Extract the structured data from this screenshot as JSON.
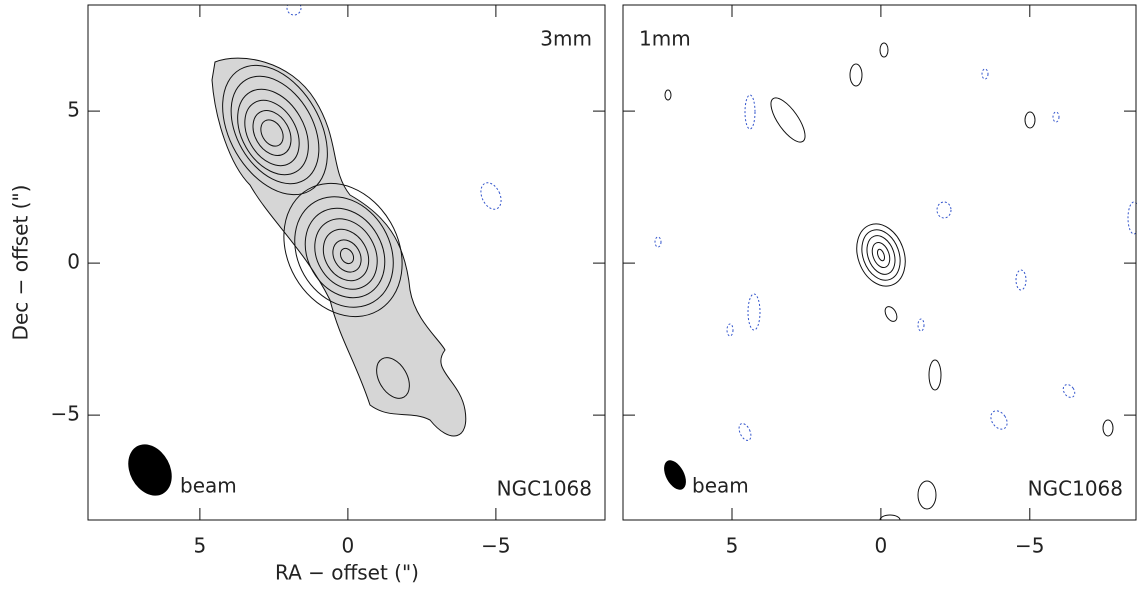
{
  "chart_data": [
    {
      "type": "contour",
      "label": "3mm",
      "source": "NGC1068",
      "beam_label": "beam",
      "x_label": "RA − offset (\")",
      "y_label": "Dec − offset (\")",
      "xlim": [
        8.78,
        -8.72
      ],
      "ylim": [
        -8.45,
        8.49
      ],
      "xticks": [
        5,
        0,
        {
          "value": -5,
          "label": "−5"
        }
      ],
      "yticks": [
        {
          "value": -5,
          "label": "−5"
        },
        0,
        5
      ]
    },
    {
      "type": "contour",
      "label": "1mm",
      "source": "NGC1068",
      "beam_label": "beam",
      "xlim": [
        8.66,
        -8.6
      ],
      "ylim": [
        -8.45,
        8.49
      ],
      "xticks": [
        5,
        0,
        {
          "value": -5,
          "label": "−5"
        }
      ],
      "yticks": [
        {
          "value": -5,
          "label": "−5"
        },
        0,
        5
      ]
    }
  ]
}
